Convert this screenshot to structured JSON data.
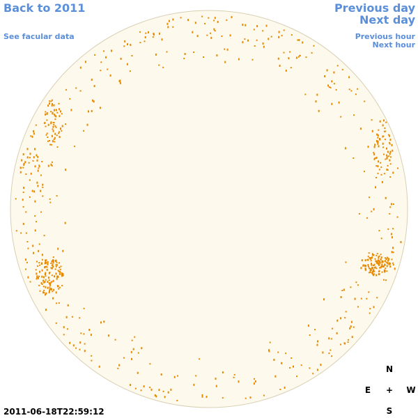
{
  "header": {
    "back_link": "Back to 2011",
    "facular_link": "See facular data",
    "previous_day": "Previous day",
    "next_day": "Next day",
    "previous_hour": "Previous hour",
    "next_hour": "Next hour"
  },
  "timestamp": "2011-06-18T22:59:12",
  "compass": {
    "north": "N",
    "east": "E",
    "center": "+",
    "west": "W",
    "south": "S"
  }
}
